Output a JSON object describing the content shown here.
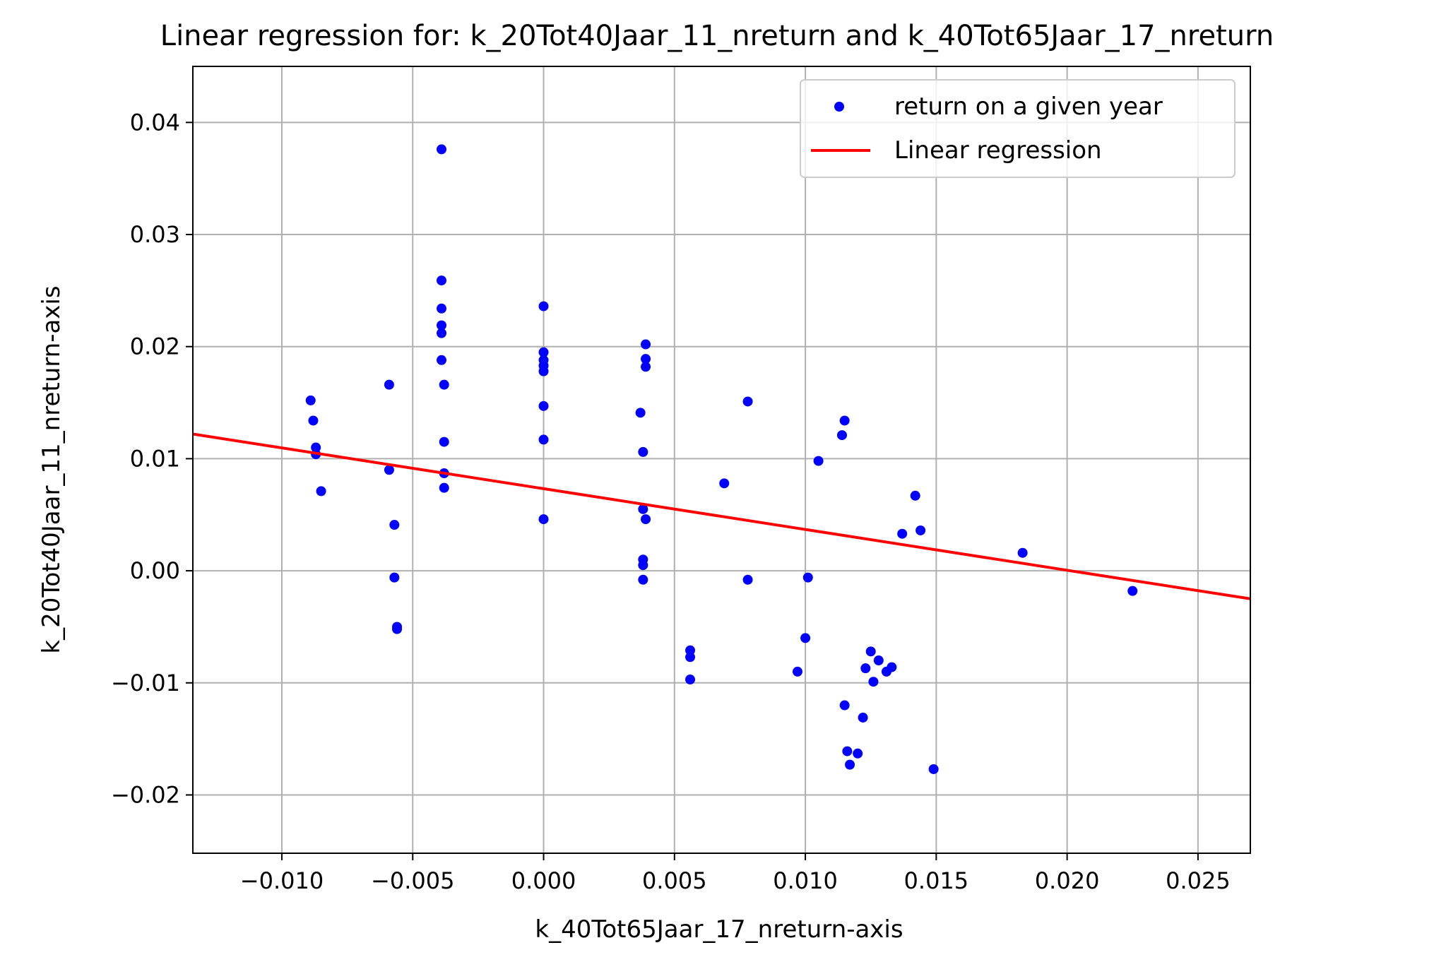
{
  "chart_data": {
    "type": "scatter",
    "title": "Linear regression for: k_20Tot40Jaar_11_nreturn and k_40Tot65Jaar_17_nreturn",
    "xlabel": "k_40Tot65Jaar_17_nreturn-axis",
    "ylabel": "k_20Tot40Jaar_11_nreturn-axis",
    "xlim": [
      -0.0134,
      0.027
    ],
    "ylim": [
      -0.0252,
      0.045
    ],
    "x_ticks": [
      -0.01,
      -0.005,
      0.0,
      0.005,
      0.01,
      0.015,
      0.02,
      0.025
    ],
    "x_tick_labels": [
      "−0.010",
      "−0.005",
      "0.000",
      "0.005",
      "0.010",
      "0.015",
      "0.020",
      "0.025"
    ],
    "y_ticks": [
      -0.02,
      -0.01,
      0.0,
      0.01,
      0.02,
      0.03,
      0.04
    ],
    "y_tick_labels": [
      "−0.02",
      "−0.01",
      "0.00",
      "0.01",
      "0.02",
      "0.03",
      "0.04"
    ],
    "grid": true,
    "legend_position": "top-right",
    "series": [
      {
        "name": "return on a given year",
        "kind": "scatter",
        "color": "#0000ff",
        "points": [
          [
            -0.0089,
            0.0152
          ],
          [
            -0.0088,
            0.0134
          ],
          [
            -0.0087,
            0.011
          ],
          [
            -0.0087,
            0.0104
          ],
          [
            -0.0085,
            0.0071
          ],
          [
            -0.0059,
            0.0166
          ],
          [
            -0.0059,
            0.009
          ],
          [
            -0.0057,
            0.0041
          ],
          [
            -0.0057,
            -0.0006
          ],
          [
            -0.0056,
            -0.005
          ],
          [
            -0.0056,
            -0.0052
          ],
          [
            -0.0039,
            0.0376
          ],
          [
            -0.0039,
            0.0259
          ],
          [
            -0.0039,
            0.0234
          ],
          [
            -0.0039,
            0.0219
          ],
          [
            -0.0039,
            0.0212
          ],
          [
            -0.0039,
            0.0188
          ],
          [
            -0.0038,
            0.0166
          ],
          [
            -0.0038,
            0.0115
          ],
          [
            -0.0038,
            0.0087
          ],
          [
            -0.0038,
            0.0074
          ],
          [
            0.0,
            0.0236
          ],
          [
            0.0,
            0.0195
          ],
          [
            0.0,
            0.0188
          ],
          [
            0.0,
            0.0183
          ],
          [
            0.0,
            0.0178
          ],
          [
            0.0,
            0.0147
          ],
          [
            0.0,
            0.0117
          ],
          [
            0.0,
            0.0046
          ],
          [
            0.0039,
            0.0202
          ],
          [
            0.0039,
            0.0189
          ],
          [
            0.0039,
            0.0182
          ],
          [
            0.0037,
            0.0141
          ],
          [
            0.0038,
            0.0106
          ],
          [
            0.0038,
            0.0055
          ],
          [
            0.0039,
            0.0046
          ],
          [
            0.0038,
            0.001
          ],
          [
            0.0038,
            0.0005
          ],
          [
            0.0038,
            -0.0008
          ],
          [
            0.0056,
            -0.0071
          ],
          [
            0.0056,
            -0.0077
          ],
          [
            0.0056,
            -0.0097
          ],
          [
            0.0069,
            0.0078
          ],
          [
            0.0078,
            0.0151
          ],
          [
            0.0078,
            -0.0008
          ],
          [
            0.0097,
            -0.009
          ],
          [
            0.01,
            -0.006
          ],
          [
            0.0101,
            -0.0006
          ],
          [
            0.0105,
            0.0098
          ],
          [
            0.0114,
            0.0121
          ],
          [
            0.0115,
            0.0134
          ],
          [
            0.0115,
            -0.012
          ],
          [
            0.0116,
            -0.0161
          ],
          [
            0.0117,
            -0.0173
          ],
          [
            0.012,
            -0.0163
          ],
          [
            0.0122,
            -0.0131
          ],
          [
            0.0123,
            -0.0087
          ],
          [
            0.0125,
            -0.0072
          ],
          [
            0.0126,
            -0.0099
          ],
          [
            0.0128,
            -0.008
          ],
          [
            0.0131,
            -0.009
          ],
          [
            0.0133,
            -0.0086
          ],
          [
            0.0137,
            0.0033
          ],
          [
            0.0142,
            0.0067
          ],
          [
            0.0144,
            0.0036
          ],
          [
            0.0149,
            -0.0177
          ],
          [
            0.0183,
            0.0016
          ],
          [
            0.0225,
            -0.0018
          ]
        ]
      },
      {
        "name": "Linear regression",
        "kind": "line",
        "color": "#ff0000",
        "x": [
          -0.0134,
          0.027
        ],
        "y": [
          0.0122,
          -0.0025
        ]
      }
    ]
  }
}
